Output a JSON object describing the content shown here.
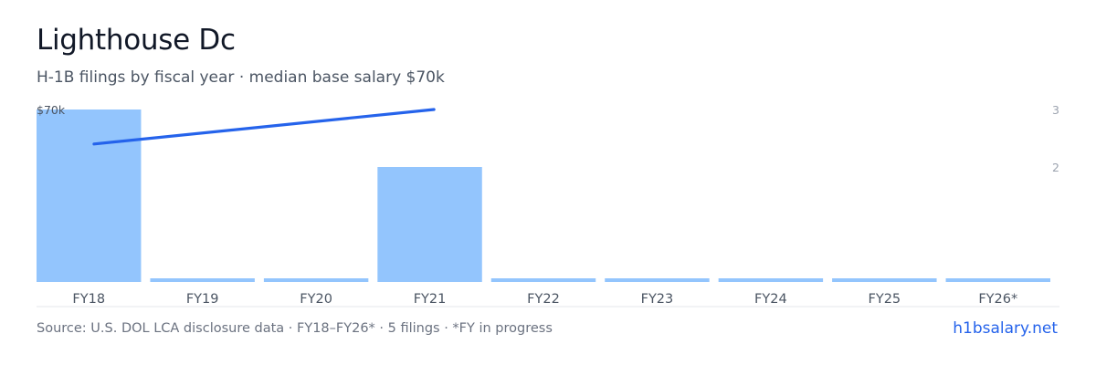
{
  "header": {
    "title": "Lighthouse Dc",
    "subtitle": "H-1B filings by fiscal year · median base salary $70k"
  },
  "footer": {
    "source": "Source: U.S. DOL LCA disclosure data · FY18–FY26* · 5 filings · *FY in progress",
    "brand": "h1bsalary.net"
  },
  "colors": {
    "bar": "#93c5fd",
    "line": "#2563eb",
    "axis_text": "#4b5563",
    "right_axis_text": "#9ca3af",
    "baseline": "#e5e7eb"
  },
  "chart_data": {
    "type": "bar",
    "categories": [
      "FY18",
      "FY19",
      "FY20",
      "FY21",
      "FY22",
      "FY23",
      "FY24",
      "FY25",
      "FY26*"
    ],
    "series": [
      {
        "type": "bar",
        "axis": "right",
        "values": [
          3,
          0,
          0,
          2,
          0,
          0,
          0,
          0,
          0
        ]
      },
      {
        "type": "line",
        "axis": "left",
        "values": [
          65000,
          null,
          null,
          70000,
          null,
          null,
          null,
          null,
          null
        ]
      }
    ],
    "left_axis": {
      "ticks": [
        {
          "value": 70000,
          "label": "$70k"
        }
      ],
      "range": [
        45000,
        70000
      ]
    },
    "right_axis": {
      "ticks": [
        {
          "value": 3,
          "label": "3"
        },
        {
          "value": 2,
          "label": "2"
        }
      ],
      "range": [
        0,
        3
      ]
    },
    "grid": false
  }
}
